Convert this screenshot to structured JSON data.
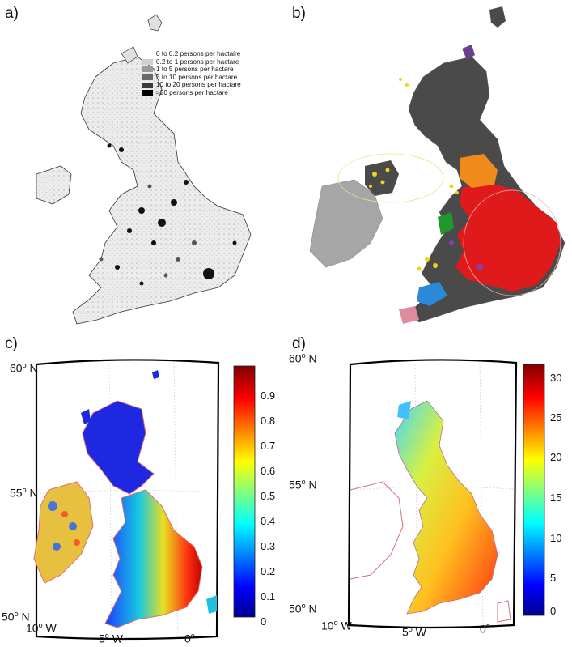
{
  "panels": {
    "a": {
      "letter": "a)",
      "legend": [
        {
          "label": "0 to 0.2 persons per hactaire",
          "color": "#ffffff"
        },
        {
          "label": "0.2 to 1 persons per hactare",
          "color": "#cfcfcf"
        },
        {
          "label": "1 to 5 persons per hactare",
          "color": "#9a9a9a"
        },
        {
          "label": "5 to 10 persons per hactare",
          "color": "#6a6a6a"
        },
        {
          "label": "10 to 20 persons per hactare",
          "color": "#3a3a3a"
        },
        {
          "label": ">20 persons per hactare",
          "color": "#000000"
        }
      ]
    },
    "b": {
      "letter": "b)"
    },
    "c": {
      "letter": "c)",
      "lat_labels": [
        {
          "deg": "60",
          "sup": "o",
          "dir": " N"
        },
        {
          "deg": "55",
          "sup": "o",
          "dir": " N"
        },
        {
          "deg": "50",
          "sup": "o",
          "dir": " N"
        }
      ],
      "lon_labels": [
        {
          "deg": "10",
          "sup": "o",
          "dir": " W"
        },
        {
          "deg": "5",
          "sup": "o",
          "dir": " W"
        },
        {
          "deg": "0",
          "sup": "o",
          "dir": ""
        }
      ],
      "colorbar_ticks": [
        "0.9",
        "0.8",
        "0.7",
        "0.6",
        "0.5",
        "0.4",
        "0.3",
        "0.2",
        "0.1",
        "0"
      ]
    },
    "d": {
      "letter": "d)",
      "lat_labels": [
        {
          "deg": "60",
          "sup": "o",
          "dir": " N"
        },
        {
          "deg": "55",
          "sup": "o",
          "dir": " N"
        },
        {
          "deg": "50",
          "sup": "o",
          "dir": " N"
        }
      ],
      "lon_labels": [
        {
          "deg": "10",
          "sup": "o",
          "dir": " W"
        },
        {
          "deg": "5",
          "sup": "o",
          "dir": " W"
        },
        {
          "deg": "0",
          "sup": "o",
          "dir": ""
        }
      ],
      "colorbar_ticks": [
        "30",
        "25",
        "20",
        "15",
        "10",
        "5",
        "0"
      ]
    }
  },
  "colors": {
    "jet_top": "#7f0000",
    "jet_red": "#ff0000",
    "jet_yellow": "#ffff00",
    "jet_cyan": "#00ffff",
    "jet_blue": "#0000ff",
    "jet_bottom": "#00008f",
    "map_gray": "#4a4a4a",
    "ireland_gray": "#a6a6a6",
    "coast_pink": "#d9707a"
  }
}
